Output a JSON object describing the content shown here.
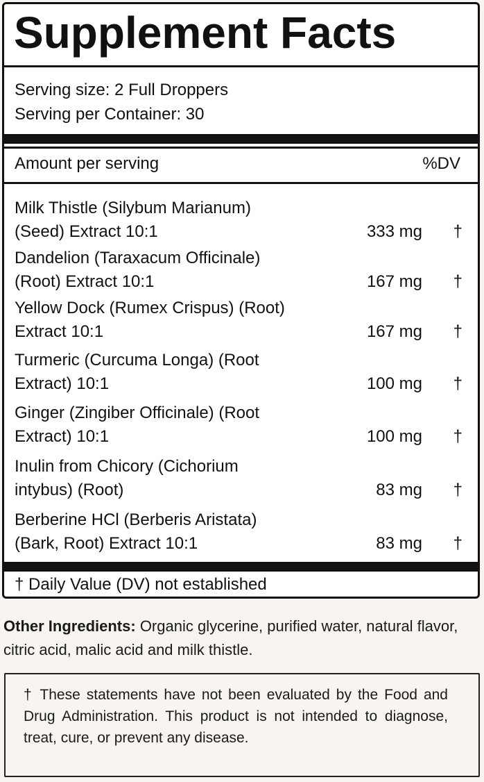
{
  "title": "Supplement Facts",
  "serving": {
    "size": "Serving size: 2 Full Droppers",
    "per_container": "Serving per Container: 30"
  },
  "table_header": {
    "amount": "Amount per serving",
    "dv": "%DV"
  },
  "ingredients": [
    {
      "line1": "Milk Thistle (Silybum Marianum)",
      "line2": "(Seed) Extract 10:1",
      "amount": "333 mg",
      "dv": "†"
    },
    {
      "line1": "Dandelion (Taraxacum Officinale)",
      "line2": "(Root) Extract 10:1",
      "amount": "167 mg",
      "dv": "†"
    },
    {
      "line1": "Yellow Dock (Rumex Crispus) (Root)",
      "line2": "Extract 10:1",
      "amount": "167 mg",
      "dv": "†"
    },
    {
      "line1": "Turmeric (Curcuma Longa) (Root",
      "line2": "Extract) 10:1",
      "amount": "100 mg",
      "dv": "†"
    },
    {
      "line1": "Ginger (Zingiber Officinale) (Root",
      "line2": "Extract) 10:1",
      "amount": "100 mg",
      "dv": "†"
    },
    {
      "line1": "Inulin from Chicory (Cichorium",
      "line2": "intybus) (Root)",
      "amount": "83 mg",
      "dv": "†"
    },
    {
      "line1": "Berberine HCl (Berberis Aristata)",
      "line2": "(Bark, Root) Extract 10:1",
      "amount": "83 mg",
      "dv": "†"
    }
  ],
  "footnote": "† Daily Value (DV) not established",
  "other_ingredients": {
    "label": "Other Ingredients:",
    "text": "Organic glycerine, purified water, natural flavor, citric acid, malic acid and milk thistle."
  },
  "disclaimer": "† These statements have not been evaluated by the Food and Drug Administration. This product is not intended to diagnose, treat, cure, or prevent any disease."
}
